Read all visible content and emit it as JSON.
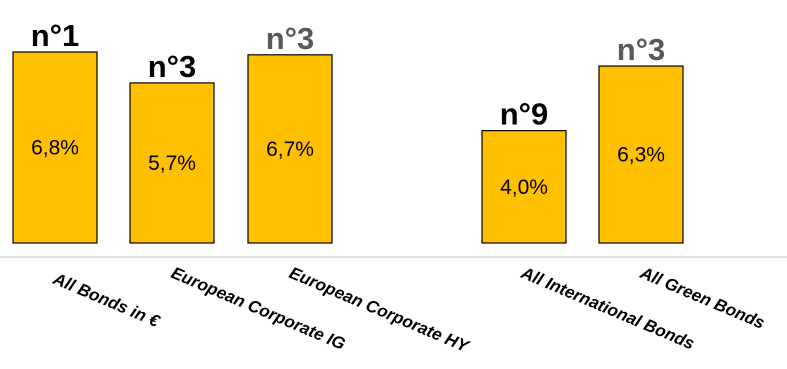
{
  "chart_data": {
    "type": "bar",
    "categories": [
      "All Bonds in €",
      "European Corporate IG",
      "European Corporate HY",
      "",
      "All International Bonds",
      "All Green Bonds"
    ],
    "values": [
      6.8,
      5.7,
      6.7,
      null,
      4.0,
      6.3
    ],
    "value_labels": [
      "6,8%",
      "5,7%",
      "6,7%",
      "",
      "4,0%",
      "6,3%"
    ],
    "ranks": [
      "n°1",
      "n°3",
      "n°3",
      "",
      "n°9",
      "n°3"
    ],
    "rank_colors": [
      "#000000",
      "#000000",
      "#595959",
      "",
      "#000000",
      "#595959"
    ],
    "bar_color": "#FFC000",
    "ylim": [
      0,
      7.2
    ],
    "grid": false,
    "legend": "none"
  }
}
